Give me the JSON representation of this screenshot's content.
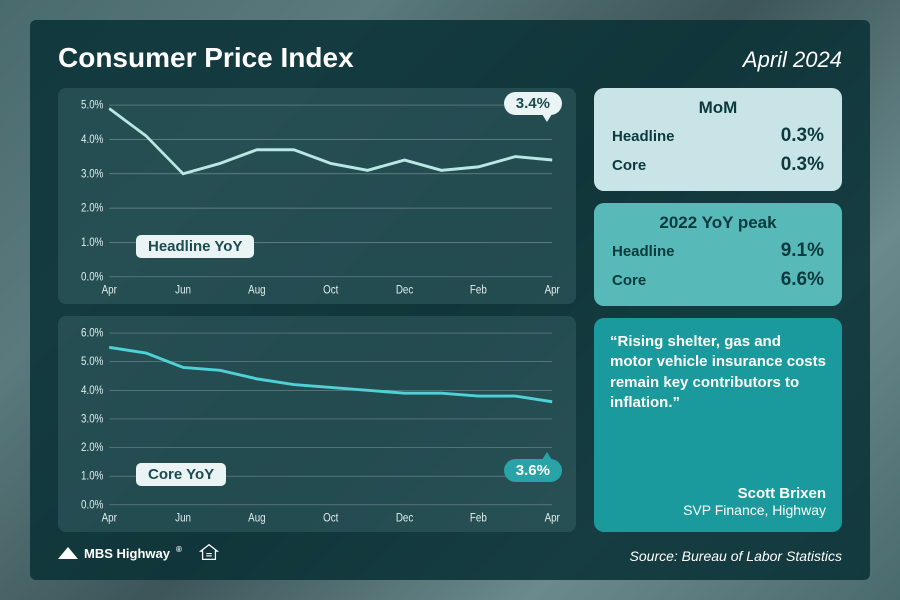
{
  "header": {
    "title": "Consumer Price Index",
    "date": "April 2024"
  },
  "charts": {
    "headline": {
      "type": "line",
      "label": "Headline YoY",
      "x_labels": [
        "Apr",
        "",
        "Jun",
        "",
        "Aug",
        "",
        "Oct",
        "",
        "Dec",
        "",
        "Feb",
        "",
        "Apr"
      ],
      "values": [
        4.9,
        4.1,
        3.0,
        3.3,
        3.7,
        3.7,
        3.3,
        3.1,
        3.4,
        3.1,
        3.2,
        3.5,
        3.4
      ],
      "ylim": [
        0.0,
        5.0
      ],
      "ytick_step": 1.0,
      "line_color": "#b9e7e4",
      "panel_bg": "rgba(120,170,175,0.18)",
      "grid_color": "rgba(255,255,255,0.35)",
      "axis_fontsize": 10,
      "callout_value": "3.4%",
      "callout_bg": "#eaf4f4",
      "callout_color": "#1b4b4f",
      "label_pill_bg": "#eaf4f4",
      "label_pill_color": "#1b4b4f"
    },
    "core": {
      "type": "line",
      "label": "Core YoY",
      "x_labels": [
        "Apr",
        "",
        "Jun",
        "",
        "Aug",
        "",
        "Oct",
        "",
        "Dec",
        "",
        "Feb",
        "",
        "Apr"
      ],
      "values": [
        5.5,
        5.3,
        4.8,
        4.7,
        4.4,
        4.2,
        4.1,
        4.0,
        3.9,
        3.9,
        3.8,
        3.8,
        3.6
      ],
      "ylim": [
        0.0,
        6.0
      ],
      "ytick_step": 1.0,
      "line_color": "#4fd1d6",
      "panel_bg": "rgba(120,170,175,0.18)",
      "grid_color": "rgba(255,255,255,0.35)",
      "axis_fontsize": 10,
      "callout_value": "3.6%",
      "callout_bg": "#2aa3a8",
      "callout_color": "#ffffff",
      "label_pill_bg": "#eaf4f4",
      "label_pill_color": "#1b4b4f"
    }
  },
  "side": {
    "mom": {
      "title": "MoM",
      "rows": [
        {
          "label": "Headline",
          "value": "0.3%"
        },
        {
          "label": "Core",
          "value": "0.3%"
        }
      ]
    },
    "peak": {
      "title": "2022 YoY peak",
      "rows": [
        {
          "label": "Headline",
          "value": "9.1%"
        },
        {
          "label": "Core",
          "value": "6.6%"
        }
      ]
    },
    "quote": {
      "text": "“Rising shelter, gas and motor vehicle insurance costs remain key contributors to inflation.”",
      "name": "Scott Brixen",
      "role": "SVP Finance, Highway"
    }
  },
  "footer": {
    "logo_text": "MBS Highway",
    "source": "Source: Bureau of Labor Statistics"
  },
  "colors": {
    "card_bg": "rgba(10,50,55,0.88)",
    "text": "#ffffff",
    "light_box": "#c9e4e6",
    "teal_box": "#58b9b9",
    "quote_box": "#1b9a9e"
  }
}
